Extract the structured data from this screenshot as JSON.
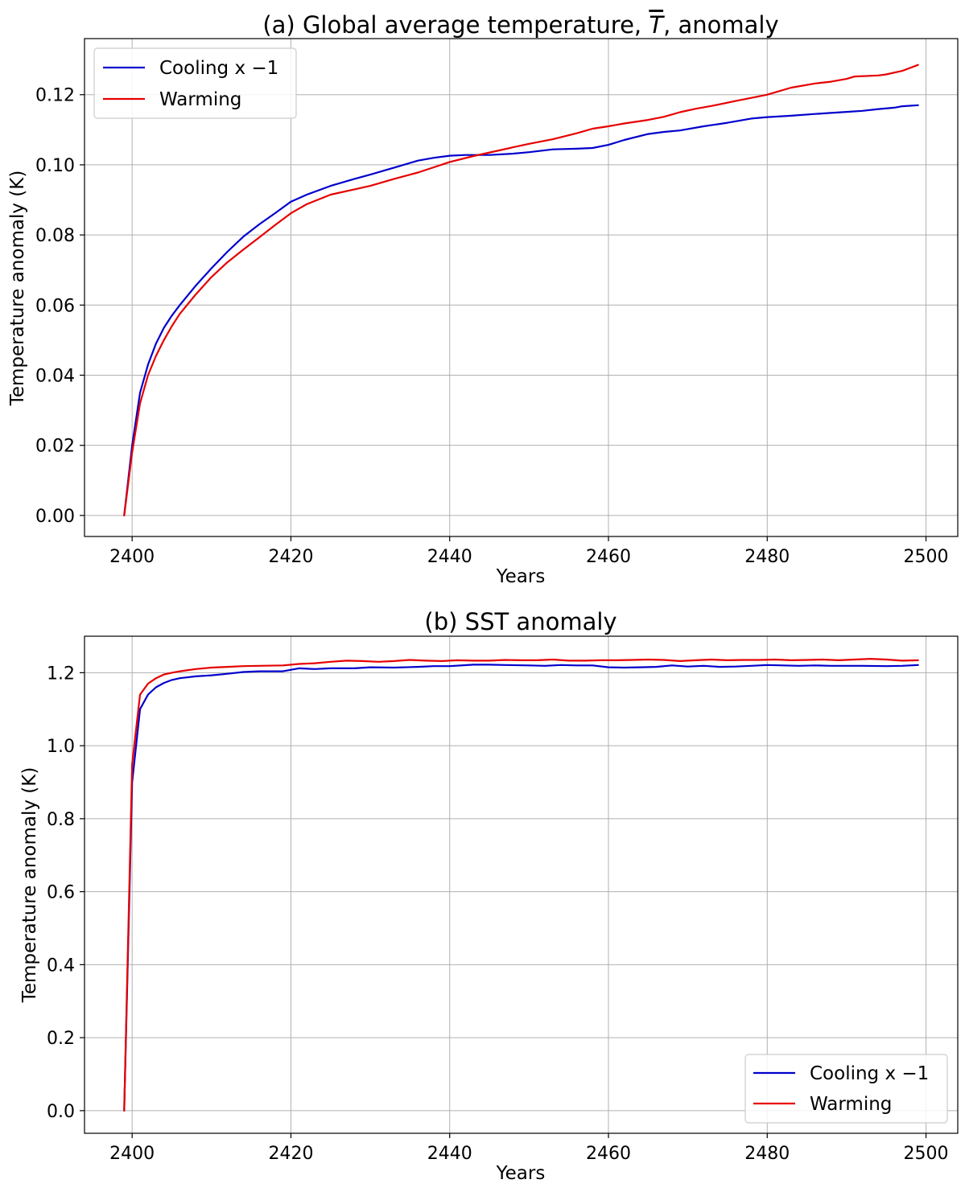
{
  "chart_data": [
    {
      "type": "line",
      "title": "(a) Global average temperature, T, anomaly",
      "title_parts": {
        "before": "(a) Global average temperature, ",
        "symbol": "T",
        "after": ", anomaly"
      },
      "xlabel": "Years",
      "ylabel": "Temperature anomaly (K)",
      "xlim": [
        2394,
        2504
      ],
      "ylim": [
        -0.006,
        0.136
      ],
      "xticks": [
        2400,
        2420,
        2440,
        2460,
        2480,
        2500
      ],
      "xtick_labels": [
        "2400",
        "2420",
        "2440",
        "2460",
        "2480",
        "2500"
      ],
      "yticks": [
        0.0,
        0.02,
        0.04,
        0.06,
        0.08,
        0.1,
        0.12
      ],
      "ytick_labels": [
        "0.00",
        "0.02",
        "0.04",
        "0.06",
        "0.08",
        "0.10",
        "0.12"
      ],
      "grid": true,
      "legend_position": "upper-left",
      "series": [
        {
          "name": "Cooling x −1",
          "color": "#0000cc",
          "x": [
            2399,
            2400,
            2401,
            2402,
            2403,
            2404,
            2405,
            2406,
            2408,
            2410,
            2412,
            2414,
            2416,
            2418,
            2420,
            2422,
            2425,
            2428,
            2430,
            2433,
            2436,
            2438,
            2440,
            2442,
            2445,
            2448,
            2450,
            2453,
            2456,
            2458,
            2460,
            2462,
            2465,
            2467,
            2469,
            2472,
            2475,
            2478,
            2480,
            2483,
            2486,
            2488,
            2490,
            2492,
            2494,
            2496,
            2497,
            2499
          ],
          "y": [
            0.0,
            0.02,
            0.035,
            0.043,
            0.049,
            0.0535,
            0.057,
            0.06,
            0.0655,
            0.0705,
            0.0752,
            0.0795,
            0.083,
            0.0862,
            0.0895,
            0.0915,
            0.094,
            0.096,
            0.0972,
            0.0992,
            0.1012,
            0.102,
            0.1026,
            0.1028,
            0.1028,
            0.1032,
            0.1036,
            0.1044,
            0.1046,
            0.1048,
            0.1057,
            0.1071,
            0.1088,
            0.1094,
            0.1098,
            0.111,
            0.112,
            0.1132,
            0.1136,
            0.114,
            0.1145,
            0.1148,
            0.1151,
            0.1154,
            0.1159,
            0.1163,
            0.1167,
            0.117
          ]
        },
        {
          "name": "Warming",
          "color": "#e60000",
          "x": [
            2399,
            2400,
            2401,
            2402,
            2403,
            2404,
            2405,
            2406,
            2408,
            2410,
            2412,
            2414,
            2416,
            2418,
            2420,
            2422,
            2425,
            2428,
            2430,
            2433,
            2436,
            2438,
            2440,
            2443,
            2446,
            2448,
            2450,
            2453,
            2456,
            2458,
            2460,
            2462,
            2465,
            2467,
            2469,
            2471,
            2473,
            2476,
            2478,
            2480,
            2483,
            2486,
            2488,
            2490,
            2491,
            2494,
            2495,
            2497,
            2499
          ],
          "y": [
            0.0,
            0.018,
            0.032,
            0.04,
            0.0455,
            0.05,
            0.054,
            0.0575,
            0.063,
            0.068,
            0.0722,
            0.0758,
            0.0793,
            0.0828,
            0.0862,
            0.0888,
            0.0915,
            0.093,
            0.094,
            0.096,
            0.0978,
            0.0993,
            0.1008,
            0.1025,
            0.104,
            0.105,
            0.106,
            0.1073,
            0.109,
            0.1103,
            0.111,
            0.1118,
            0.1128,
            0.1137,
            0.115,
            0.116,
            0.1168,
            0.1182,
            0.1191,
            0.12,
            0.122,
            0.1232,
            0.1237,
            0.1245,
            0.1252,
            0.1255,
            0.1258,
            0.1268,
            0.1285
          ]
        }
      ]
    },
    {
      "type": "line",
      "title": "(b) SST anomaly",
      "xlabel": "Years",
      "ylabel": "Temperature anomaly (K)",
      "xlim": [
        2394,
        2504
      ],
      "ylim": [
        -0.062,
        1.3
      ],
      "xticks": [
        2400,
        2420,
        2440,
        2460,
        2480,
        2500
      ],
      "xtick_labels": [
        "2400",
        "2420",
        "2440",
        "2460",
        "2480",
        "2500"
      ],
      "yticks": [
        0.0,
        0.2,
        0.4,
        0.6,
        0.8,
        1.0,
        1.2
      ],
      "ytick_labels": [
        "0.0",
        "0.2",
        "0.4",
        "0.6",
        "0.8",
        "1.0",
        "1.2"
      ],
      "grid": true,
      "legend_position": "lower-right",
      "series": [
        {
          "name": "Cooling x −1",
          "color": "#0000cc",
          "x": [
            2399,
            2400,
            2401,
            2402,
            2403,
            2404,
            2405,
            2406,
            2408,
            2410,
            2412,
            2414,
            2416,
            2419,
            2421,
            2423,
            2425,
            2428,
            2430,
            2433,
            2436,
            2438,
            2440,
            2443,
            2445,
            2447,
            2450,
            2452,
            2454,
            2456,
            2458,
            2460,
            2462,
            2464,
            2466,
            2468,
            2470,
            2472,
            2474,
            2476,
            2478,
            2480,
            2482,
            2484,
            2486,
            2488,
            2490,
            2492,
            2495,
            2497,
            2499
          ],
          "y": [
            0.0,
            0.9,
            1.1,
            1.14,
            1.16,
            1.172,
            1.18,
            1.185,
            1.19,
            1.193,
            1.197,
            1.202,
            1.204,
            1.204,
            1.212,
            1.21,
            1.212,
            1.212,
            1.215,
            1.214,
            1.216,
            1.218,
            1.218,
            1.222,
            1.222,
            1.221,
            1.22,
            1.219,
            1.221,
            1.22,
            1.22,
            1.215,
            1.214,
            1.215,
            1.216,
            1.22,
            1.217,
            1.219,
            1.216,
            1.217,
            1.219,
            1.221,
            1.22,
            1.219,
            1.22,
            1.219,
            1.219,
            1.219,
            1.218,
            1.219,
            1.221
          ]
        },
        {
          "name": "Warming",
          "color": "#e60000",
          "x": [
            2399,
            2400,
            2401,
            2402,
            2403,
            2404,
            2405,
            2406,
            2408,
            2410,
            2412,
            2414,
            2416,
            2419,
            2421,
            2423,
            2425,
            2427,
            2429,
            2431,
            2433,
            2435,
            2437,
            2439,
            2441,
            2443,
            2445,
            2447,
            2449,
            2451,
            2453,
            2455,
            2457,
            2459,
            2461,
            2463,
            2465,
            2467,
            2469,
            2471,
            2473,
            2475,
            2477,
            2479,
            2481,
            2483,
            2485,
            2487,
            2489,
            2491,
            2493,
            2495,
            2497,
            2499
          ],
          "y": [
            0.0,
            0.95,
            1.14,
            1.17,
            1.185,
            1.195,
            1.2,
            1.204,
            1.21,
            1.214,
            1.216,
            1.218,
            1.219,
            1.22,
            1.224,
            1.226,
            1.23,
            1.233,
            1.232,
            1.23,
            1.232,
            1.235,
            1.233,
            1.232,
            1.234,
            1.233,
            1.233,
            1.235,
            1.234,
            1.234,
            1.236,
            1.233,
            1.233,
            1.234,
            1.234,
            1.235,
            1.236,
            1.235,
            1.232,
            1.234,
            1.236,
            1.234,
            1.235,
            1.235,
            1.236,
            1.234,
            1.235,
            1.236,
            1.234,
            1.236,
            1.238,
            1.236,
            1.233,
            1.234
          ]
        }
      ]
    }
  ]
}
